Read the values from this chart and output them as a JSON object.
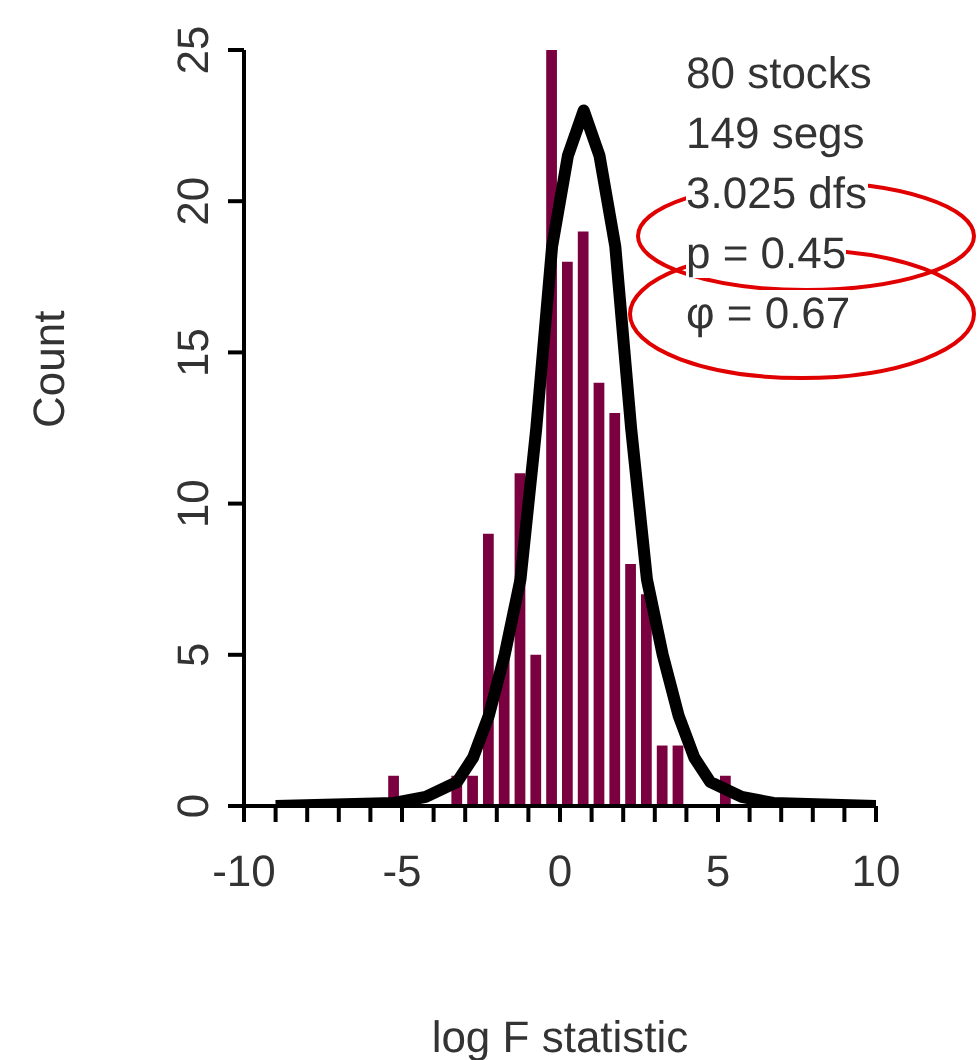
{
  "chart_data": {
    "type": "histogram",
    "xlabel": "log F statistic",
    "ylabel": "Count",
    "annotations": [
      "80 stocks",
      "149 segs",
      "3.025 dfs",
      "p = 0.45",
      "φ = 0.67"
    ],
    "bins": [
      -5.5,
      -5,
      -4.5,
      -4,
      -3.5,
      -3,
      -2.5,
      -2,
      -1.5,
      -1,
      -0.5,
      0,
      0.5,
      1,
      1.5,
      2,
      2.5,
      3,
      3.5,
      4,
      4.5,
      5,
      5.5
    ],
    "values": [
      1,
      0,
      0,
      0,
      1,
      1,
      9,
      5,
      11,
      5,
      25,
      18,
      19,
      14,
      13,
      8,
      7,
      2,
      2,
      0,
      0,
      1
    ],
    "color": "#7a0040",
    "series": [
      {
        "type": "line",
        "color": "#000000",
        "x": [
          -9,
          -5.25,
          -4.25,
          -3.25,
          -2.75,
          -2.25,
          -1.75,
          -1.25,
          -0.75,
          -0.25,
          0.25,
          0.75,
          1.25,
          1.75,
          2.25,
          2.75,
          3.25,
          3.75,
          4.25,
          4.75,
          5.75,
          6.75,
          10
        ],
        "values": [
          0,
          0.1,
          0.3,
          0.8,
          1.6,
          3,
          5,
          7.5,
          12.5,
          18.5,
          21.5,
          23,
          21.5,
          18.5,
          12.5,
          7.5,
          5,
          3,
          1.6,
          0.8,
          0.3,
          0.1,
          0
        ]
      }
    ],
    "xlim": [
      -10,
      10
    ],
    "xticks": [
      -10,
      {
        "value": -9,
        "label": null
      },
      {
        "value": -8,
        "label": null
      },
      {
        "value": -7,
        "label": null
      },
      {
        "value": -6,
        "label": null
      },
      -5,
      {
        "value": -4,
        "label": null
      },
      {
        "value": -3,
        "label": null
      },
      {
        "value": -2,
        "label": null
      },
      {
        "value": -1,
        "label": null
      },
      0,
      {
        "value": 1,
        "label": null
      },
      {
        "value": 2,
        "label": null
      },
      {
        "value": 3,
        "label": null
      },
      {
        "value": 4,
        "label": null
      },
      5,
      {
        "value": 6,
        "label": null
      },
      {
        "value": 7,
        "label": null
      },
      {
        "value": 8,
        "label": null
      },
      {
        "value": 9,
        "label": null
      },
      10
    ],
    "ylim": [
      0,
      25
    ],
    "yticks": [
      0,
      5,
      10,
      15,
      20,
      25
    ]
  }
}
